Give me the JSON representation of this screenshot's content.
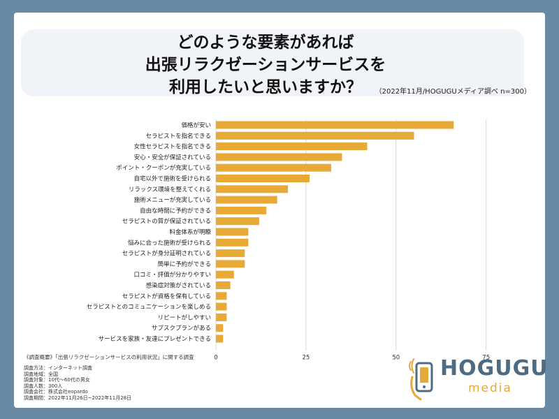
{
  "header": {
    "title_lines": [
      "どのような要素があれば",
      "出張リラクゼーションサービスを",
      "利用したいと思いますか？"
    ],
    "subtitle": "（2022年11月/HOGUGUメディア調べ n=300）"
  },
  "chart_data": {
    "type": "bar",
    "orientation": "horizontal",
    "title": "どのような要素があれば出張リラクゼーションサービスを利用したいと思いますか？",
    "categories": [
      "価格が安い",
      "セラピストを指名できる",
      "女性セラピストを指名できる",
      "安心・安全が保証されている",
      "ポイント・クーポンが充実している",
      "自宅以外で施術を受けられる",
      "リラックス環境を整えてくれる",
      "施術メニューが充実している",
      "自由な時間に予約ができる",
      "セラピストの質が保証されている",
      "料金体系が明瞭",
      "悩みに合った施術が受けられる",
      "セラピストが身分証明されている",
      "簡単に予約ができる",
      "口コミ・評価が分かりやすい",
      "感染症対策がされている",
      "セラピストが資格を保有している",
      "セラピストとのコミュニケーションを楽しめる",
      "リピートがしやすい",
      "サブスクプランがある",
      "サービスを家族・友達にプレゼントできる"
    ],
    "values": [
      66,
      55,
      42,
      35,
      32,
      26,
      20,
      17,
      14,
      12,
      9,
      9,
      8,
      8,
      5,
      4,
      3,
      3,
      3,
      2,
      2
    ],
    "xlim": [
      0,
      80
    ],
    "ticks": [
      0,
      25,
      50,
      75
    ],
    "grid": true,
    "bar_color": "#e8aa37"
  },
  "survey": {
    "heading": "《調査概要》「出張リラクゼーションサービスの利用状況」に関する調査",
    "rows": [
      "調査方法：インターネット調査",
      "調査地域：全国",
      "調査対象：10代～60代の男女",
      "調査人数：300人",
      "調査会社：株式会社eopardo",
      "調査期間：2022年11月26日~2022年11月28日"
    ]
  },
  "logo": {
    "main": "HOGUGU",
    "sub": "media",
    "colors": {
      "main": "#4e6b82",
      "sub": "#e3a93a"
    }
  }
}
